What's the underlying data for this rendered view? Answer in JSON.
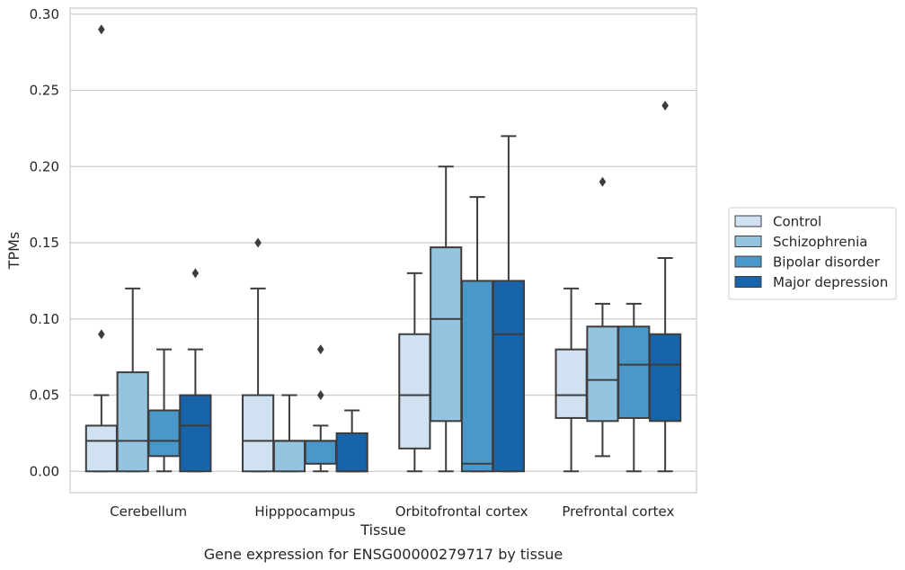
{
  "caption": "Gene expression for ENSG00000279717 by tissue",
  "chart_data": {
    "type": "box",
    "xlabel": "Tissue",
    "ylabel": "TPMs",
    "ylim": [
      -0.014,
      0.304
    ],
    "yticks": [
      0.0,
      0.05,
      0.1,
      0.15,
      0.2,
      0.25,
      0.3
    ],
    "ytick_labels": [
      "0.00",
      "0.05",
      "0.10",
      "0.15",
      "0.20",
      "0.25",
      "0.30"
    ],
    "grid": "horizontal",
    "legend_position": "right",
    "categories": [
      "Cerebellum",
      "Hipppocampus",
      "Orbitofrontal cortex",
      "Prefrontal cortex"
    ],
    "series": [
      {
        "name": "Control",
        "color": "#d0e1f2",
        "boxes": [
          {
            "whislo": 0.0,
            "q1": 0.0,
            "med": 0.02,
            "q3": 0.03,
            "whishi": 0.05,
            "fliers": [
              0.09,
              0.29
            ]
          },
          {
            "whislo": 0.0,
            "q1": 0.0,
            "med": 0.02,
            "q3": 0.05,
            "whishi": 0.12,
            "fliers": [
              0.15
            ]
          },
          {
            "whislo": 0.0,
            "q1": 0.015,
            "med": 0.05,
            "q3": 0.09,
            "whishi": 0.13,
            "fliers": []
          },
          {
            "whislo": 0.0,
            "q1": 0.035,
            "med": 0.05,
            "q3": 0.08,
            "whishi": 0.12,
            "fliers": []
          }
        ]
      },
      {
        "name": "Schizophrenia",
        "color": "#94c4df",
        "boxes": [
          {
            "whislo": 0.0,
            "q1": 0.0,
            "med": 0.02,
            "q3": 0.065,
            "whishi": 0.12,
            "fliers": []
          },
          {
            "whislo": 0.0,
            "q1": 0.0,
            "med": 0.02,
            "q3": 0.02,
            "whishi": 0.05,
            "fliers": []
          },
          {
            "whislo": 0.0,
            "q1": 0.033,
            "med": 0.1,
            "q3": 0.147,
            "whishi": 0.2,
            "fliers": []
          },
          {
            "whislo": 0.01,
            "q1": 0.033,
            "med": 0.06,
            "q3": 0.095,
            "whishi": 0.11,
            "fliers": [
              0.19
            ]
          }
        ]
      },
      {
        "name": "Bipolar disorder",
        "color": "#4a98c9",
        "boxes": [
          {
            "whislo": 0.0,
            "q1": 0.01,
            "med": 0.02,
            "q3": 0.04,
            "whishi": 0.08,
            "fliers": []
          },
          {
            "whislo": 0.0,
            "q1": 0.005,
            "med": 0.02,
            "q3": 0.02,
            "whishi": 0.03,
            "fliers": [
              0.05,
              0.08
            ]
          },
          {
            "whislo": 0.0,
            "q1": 0.0,
            "med": 0.005,
            "q3": 0.125,
            "whishi": 0.18,
            "fliers": []
          },
          {
            "whislo": 0.0,
            "q1": 0.035,
            "med": 0.07,
            "q3": 0.095,
            "whishi": 0.11,
            "fliers": []
          }
        ]
      },
      {
        "name": "Major depression",
        "color": "#1764ab",
        "boxes": [
          {
            "whislo": 0.0,
            "q1": 0.0,
            "med": 0.03,
            "q3": 0.05,
            "whishi": 0.08,
            "fliers": [
              0.13
            ]
          },
          {
            "whislo": 0.0,
            "q1": 0.0,
            "med": 0.0,
            "q3": 0.025,
            "whishi": 0.04,
            "fliers": []
          },
          {
            "whislo": 0.0,
            "q1": 0.0,
            "med": 0.09,
            "q3": 0.125,
            "whishi": 0.22,
            "fliers": []
          },
          {
            "whislo": 0.0,
            "q1": 0.033,
            "med": 0.07,
            "q3": 0.09,
            "whishi": 0.14,
            "fliers": [
              0.24
            ]
          }
        ]
      }
    ]
  }
}
